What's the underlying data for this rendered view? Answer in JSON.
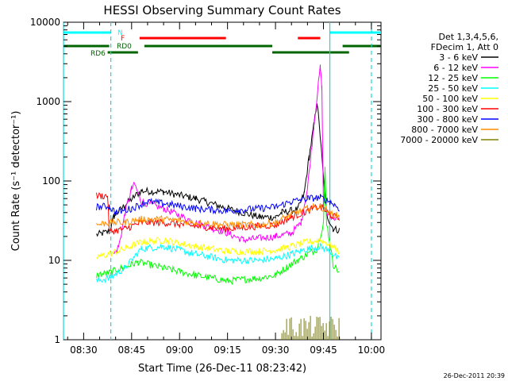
{
  "chart_data": {
    "type": "line",
    "title": "HESSI Observing Summary Count Rates",
    "xlabel": "Start Time (26-Dec-11 08:23:42)",
    "ylabel": "Count Rate (s⁻¹ detector⁻¹)",
    "y_scale": "log",
    "xlim": [
      "08:23:42",
      "10:03:00"
    ],
    "ylim": [
      1,
      10000
    ],
    "x_ticks": [
      "08:30",
      "08:45",
      "09:00",
      "09:15",
      "09:30",
      "09:45",
      "10:00"
    ],
    "y_ticks": [
      "1",
      "10",
      "100",
      "1000",
      "10000"
    ],
    "footer_date": "26-Dec-2011 20:39",
    "legend": {
      "position": "right",
      "header": [
        "Det 1,3,4,5,6,",
        "FDecim 1, Att 0"
      ]
    },
    "flag_labels": {
      "night": "N",
      "flare": "F",
      "rd0": "RD0",
      "rd6": "RD6"
    },
    "flags": {
      "night": [
        [
          "08:23:42",
          "08:38:30"
        ],
        [
          "09:47:00",
          "10:03:00"
        ]
      ],
      "flare": [
        [
          "08:47:30",
          "09:14:30"
        ],
        [
          "09:37:00",
          "09:44:00"
        ]
      ],
      "rd0": [
        [
          "08:23:42",
          "08:38:00"
        ],
        [
          "08:49:00",
          "09:29:00"
        ],
        [
          "09:51:00",
          "10:03:00"
        ]
      ],
      "rd6": [
        [
          "08:37:30",
          "08:47:00"
        ],
        [
          "09:29:00",
          "09:53:00"
        ]
      ]
    },
    "vertical_lines": [
      {
        "time": "08:23:42",
        "style": "solid"
      },
      {
        "time": "08:38:30",
        "style": "dashed"
      },
      {
        "time": "09:47:00",
        "style": "solid"
      },
      {
        "time": "10:00:00",
        "style": "dashed"
      }
    ],
    "series": [
      {
        "name": "3 - 6 keV",
        "color": "#000000",
        "points": [
          [
            "08:34:00",
            21
          ],
          [
            "08:38:00",
            23
          ],
          [
            "08:39:30",
            36
          ],
          [
            "08:43:00",
            50
          ],
          [
            "08:45:30",
            62
          ],
          [
            "08:48:00",
            75
          ],
          [
            "08:55:00",
            73
          ],
          [
            "09:05:00",
            60
          ],
          [
            "09:15:00",
            45
          ],
          [
            "09:25:00",
            35
          ],
          [
            "09:30:00",
            35
          ],
          [
            "09:32:00",
            40
          ],
          [
            "09:37:00",
            44
          ],
          [
            "09:39:00",
            70
          ],
          [
            "09:40:30",
            200
          ],
          [
            "09:42:00",
            500
          ],
          [
            "09:43:00",
            1000
          ],
          [
            "09:44:00",
            360
          ],
          [
            "09:45:00",
            110
          ],
          [
            "09:46:00",
            38
          ],
          [
            "09:48:00",
            25
          ],
          [
            "09:50:00",
            24
          ]
        ]
      },
      {
        "name": "6 - 12 keV",
        "color": "#ff00ff",
        "points": [
          [
            "08:39:30",
            12
          ],
          [
            "08:41:00",
            15
          ],
          [
            "08:43:00",
            40
          ],
          [
            "08:45:00",
            80
          ],
          [
            "08:46:00",
            90
          ],
          [
            "08:48:00",
            55
          ],
          [
            "08:55:00",
            45
          ],
          [
            "09:05:00",
            30
          ],
          [
            "09:15:00",
            22
          ],
          [
            "09:20:00",
            18
          ],
          [
            "09:30:00",
            20
          ],
          [
            "09:35:00",
            22
          ],
          [
            "09:38:00",
            30
          ],
          [
            "09:40:00",
            80
          ],
          [
            "09:42:00",
            500
          ],
          [
            "09:44:00",
            2700
          ],
          [
            "09:44:30",
            1500
          ],
          [
            "09:45:00",
            45
          ],
          [
            "09:46:00",
            40
          ],
          [
            "09:48:00",
            35
          ],
          [
            "09:50:00",
            32
          ]
        ]
      },
      {
        "name": "12 - 25 keV",
        "color": "#00ff00",
        "points": [
          [
            "08:34:00",
            6.5
          ],
          [
            "08:38:00",
            7
          ],
          [
            "08:42:00",
            8
          ],
          [
            "08:47:00",
            9.5
          ],
          [
            "08:55:00",
            8
          ],
          [
            "09:05:00",
            6.5
          ],
          [
            "09:15:00",
            5.5
          ],
          [
            "09:25:00",
            6
          ],
          [
            "09:30:00",
            6.5
          ],
          [
            "09:35:00",
            9
          ],
          [
            "09:40:00",
            12
          ],
          [
            "09:43:00",
            14
          ],
          [
            "09:45:00",
            30
          ],
          [
            "09:45:30",
            140
          ],
          [
            "09:46:00",
            30
          ],
          [
            "09:48:00",
            9
          ],
          [
            "09:50:00",
            7
          ]
        ]
      },
      {
        "name": "25 - 50 keV",
        "color": "#00ffff",
        "points": [
          [
            "08:34:00",
            5.5
          ],
          [
            "08:38:00",
            6
          ],
          [
            "08:43:00",
            8
          ],
          [
            "08:48:00",
            14
          ],
          [
            "08:55:00",
            15
          ],
          [
            "09:05:00",
            12
          ],
          [
            "09:15:00",
            10
          ],
          [
            "09:25:00",
            10
          ],
          [
            "09:30:00",
            10.5
          ],
          [
            "09:35:00",
            12
          ],
          [
            "09:40:00",
            14
          ],
          [
            "09:44:00",
            15
          ],
          [
            "09:47:00",
            13
          ],
          [
            "09:50:00",
            10
          ]
        ]
      },
      {
        "name": "50 - 100 keV",
        "color": "#ffff00",
        "points": [
          [
            "08:34:00",
            11
          ],
          [
            "08:38:00",
            12
          ],
          [
            "08:43:00",
            14
          ],
          [
            "08:48:00",
            17
          ],
          [
            "08:55:00",
            18
          ],
          [
            "09:05:00",
            15
          ],
          [
            "09:15:00",
            13
          ],
          [
            "09:25:00",
            13
          ],
          [
            "09:30:00",
            13.5
          ],
          [
            "09:35:00",
            15
          ],
          [
            "09:40:00",
            17
          ],
          [
            "09:44:00",
            18
          ],
          [
            "09:47:00",
            16
          ],
          [
            "09:50:00",
            13
          ]
        ]
      },
      {
        "name": "100 - 300 keV",
        "color": "#ff0000",
        "points": [
          [
            "08:34:00",
            65
          ],
          [
            "08:37:30",
            65
          ],
          [
            "08:38:00",
            23
          ],
          [
            "08:43:00",
            25
          ],
          [
            "08:48:00",
            30
          ],
          [
            "08:55:00",
            30
          ],
          [
            "09:05:00",
            27
          ],
          [
            "09:15:00",
            25
          ],
          [
            "09:25:00",
            27
          ],
          [
            "09:30:00",
            28
          ],
          [
            "09:35:00",
            35
          ],
          [
            "09:40:00",
            42
          ],
          [
            "09:44:00",
            48
          ],
          [
            "09:47:00",
            38
          ],
          [
            "09:50:00",
            33
          ]
        ]
      },
      {
        "name": "300 - 800 keV",
        "color": "#0000ff",
        "points": [
          [
            "08:34:00",
            47
          ],
          [
            "08:38:00",
            48
          ],
          [
            "08:40:00",
            40
          ],
          [
            "08:45:00",
            45
          ],
          [
            "08:50:00",
            55
          ],
          [
            "08:55:00",
            52
          ],
          [
            "09:05:00",
            45
          ],
          [
            "09:15:00",
            42
          ],
          [
            "09:25:00",
            45
          ],
          [
            "09:30:00",
            47
          ],
          [
            "09:35:00",
            55
          ],
          [
            "09:40:00",
            60
          ],
          [
            "09:44:00",
            62
          ],
          [
            "09:47:00",
            55
          ],
          [
            "09:50:00",
            45
          ]
        ]
      },
      {
        "name": "800 - 7000 keV",
        "color": "#ff8c00",
        "points": [
          [
            "08:34:00",
            28
          ],
          [
            "08:38:00",
            30
          ],
          [
            "08:43:00",
            30
          ],
          [
            "08:48:00",
            33
          ],
          [
            "08:55:00",
            33
          ],
          [
            "09:05:00",
            30
          ],
          [
            "09:15:00",
            28
          ],
          [
            "09:25:00",
            28
          ],
          [
            "09:30:00",
            30
          ],
          [
            "09:35:00",
            38
          ],
          [
            "09:40:00",
            45
          ],
          [
            "09:44:00",
            48
          ],
          [
            "09:47:00",
            40
          ],
          [
            "09:50:00",
            35
          ]
        ]
      },
      {
        "name": "7000 - 20000 keV",
        "color": "#808000",
        "points": [
          [
            "09:32:00",
            1.6
          ],
          [
            "09:36:00",
            1.8
          ],
          [
            "09:40:00",
            2.0
          ],
          [
            "09:44:00",
            1.7
          ],
          [
            "09:48:00",
            1.6
          ],
          [
            "09:50:00",
            1.5
          ]
        ]
      }
    ]
  }
}
